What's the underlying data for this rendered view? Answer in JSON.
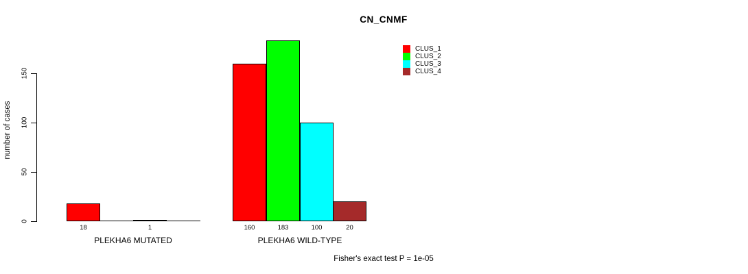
{
  "title": "CN_CNMF",
  "footer": "Fisher's exact test P = 1e-05",
  "y_axis": {
    "label": "number of cases"
  },
  "legend": {
    "items": [
      {
        "label": "CLUS_1",
        "color": "#FF0000"
      },
      {
        "label": "CLUS_2",
        "color": "#00FF00"
      },
      {
        "label": "CLUS_3",
        "color": "#00FFFF"
      },
      {
        "label": "CLUS_4",
        "color": "#A52A2A"
      }
    ]
  },
  "chart_data": {
    "type": "bar",
    "title": "CN_CNMF",
    "categories": [
      "PLEKHA6 MUTATED",
      "PLEKHA6 WILD-TYPE"
    ],
    "series": [
      {
        "name": "CLUS_1",
        "color": "#FF0000",
        "values": [
          18,
          160
        ]
      },
      {
        "name": "CLUS_2",
        "color": "#00FF00",
        "values": [
          0,
          183
        ]
      },
      {
        "name": "CLUS_3",
        "color": "#00FFFF",
        "values": [
          1,
          100
        ]
      },
      {
        "name": "CLUS_4",
        "color": "#A52A2A",
        "values": [
          0,
          20
        ]
      }
    ],
    "xlabel": "",
    "ylabel": "number of cases",
    "ylim": [
      0,
      190
    ],
    "yticks": [
      0,
      50,
      100,
      150
    ],
    "grid": false,
    "legend_position": "top-right",
    "bar_value_labels": "shown under each non-zero bar",
    "annotation": "Fisher's exact test P = 1e-05"
  }
}
